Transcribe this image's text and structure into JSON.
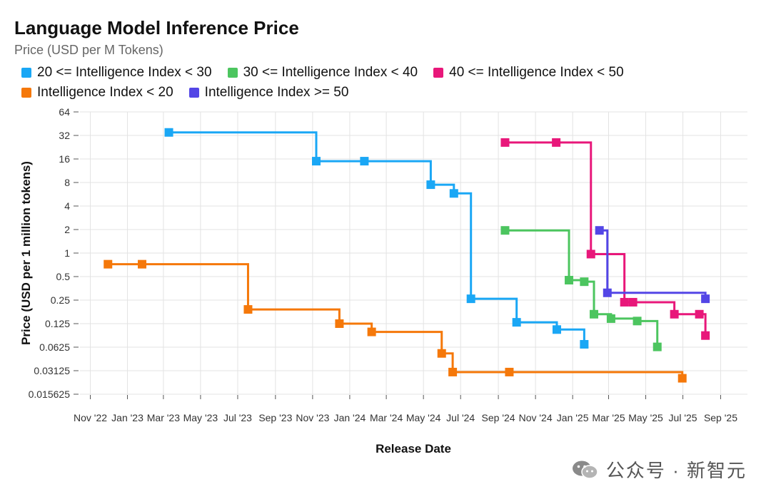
{
  "header": {
    "title": "Language Model Inference Price",
    "subtitle": "Price (USD per M Tokens)"
  },
  "watermark": {
    "text": "公众号 · 新智元",
    "icon": "wechat-icon"
  },
  "chart_data": {
    "type": "line",
    "step": true,
    "title": "Language Model Inference Price",
    "subtitle": "Price (USD per M Tokens)",
    "xlabel": "Release Date",
    "ylabel": "Price (USD per 1 million tokens)",
    "y_scale": "log2",
    "ylim": [
      0.015625,
      64
    ],
    "y_ticks": [
      "64",
      "32",
      "16",
      "8",
      "4",
      "2",
      "1",
      "0.5",
      "0.25",
      "0.125",
      "0.0625",
      "0.03125",
      "0.015625"
    ],
    "xlim": [
      "2022-10-15",
      "2025-10-15"
    ],
    "x_ticks": [
      {
        "date": "2022-11-01",
        "label": "Nov '22"
      },
      {
        "date": "2023-01-01",
        "label": "Jan '23"
      },
      {
        "date": "2023-03-01",
        "label": "Mar '23"
      },
      {
        "date": "2023-05-01",
        "label": "May '23"
      },
      {
        "date": "2023-07-01",
        "label": "Jul '23"
      },
      {
        "date": "2023-09-01",
        "label": "Sep '23"
      },
      {
        "date": "2023-11-01",
        "label": "Nov '23"
      },
      {
        "date": "2024-01-01",
        "label": "Jan '24"
      },
      {
        "date": "2024-03-01",
        "label": "Mar '24"
      },
      {
        "date": "2024-05-01",
        "label": "May '24"
      },
      {
        "date": "2024-07-01",
        "label": "Jul '24"
      },
      {
        "date": "2024-09-01",
        "label": "Sep '24"
      },
      {
        "date": "2024-11-01",
        "label": "Nov '24"
      },
      {
        "date": "2025-01-01",
        "label": "Jan '25"
      },
      {
        "date": "2025-03-01",
        "label": "Mar '25"
      },
      {
        "date": "2025-05-01",
        "label": "May '25"
      },
      {
        "date": "2025-07-01",
        "label": "Jul '25"
      },
      {
        "date": "2025-09-01",
        "label": "Sep '25"
      }
    ],
    "grid": true,
    "legend_position": "top",
    "legend_order": [
      [
        "20 <= Intelligence Index < 30",
        "30 <= Intelligence Index < 40",
        "40 <= Intelligence Index < 50"
      ],
      [
        "Intelligence Index < 20",
        "Intelligence Index >= 50"
      ]
    ],
    "series": [
      {
        "name": "20 <= Intelligence Index < 30",
        "color": "#1aa7f5",
        "points": [
          {
            "x": "2023-03-10",
            "y": 35
          },
          {
            "x": "2023-11-07",
            "y": 15
          },
          {
            "x": "2024-01-25",
            "y": 15
          },
          {
            "x": "2024-05-13",
            "y": 7.5
          },
          {
            "x": "2024-06-20",
            "y": 5.8
          },
          {
            "x": "2024-07-18",
            "y": 0.26
          },
          {
            "x": "2024-10-01",
            "y": 0.13
          },
          {
            "x": "2024-12-06",
            "y": 0.105
          },
          {
            "x": "2025-01-20",
            "y": 0.068
          }
        ]
      },
      {
        "name": "30 <= Intelligence Index < 40",
        "color": "#4cc55f",
        "points": [
          {
            "x": "2024-09-12",
            "y": 1.95
          },
          {
            "x": "2024-12-26",
            "y": 0.45
          },
          {
            "x": "2025-01-20",
            "y": 0.43
          },
          {
            "x": "2025-02-05",
            "y": 0.165
          },
          {
            "x": "2025-03-05",
            "y": 0.145
          },
          {
            "x": "2025-04-17",
            "y": 0.135
          },
          {
            "x": "2025-05-20",
            "y": 0.063
          }
        ]
      },
      {
        "name": "40 <= Intelligence Index < 50",
        "color": "#e8177a",
        "points": [
          {
            "x": "2024-09-12",
            "y": 26
          },
          {
            "x": "2024-12-05",
            "y": 26
          },
          {
            "x": "2025-01-31",
            "y": 0.97
          },
          {
            "x": "2025-03-27",
            "y": 0.235
          },
          {
            "x": "2025-04-10",
            "y": 0.235
          },
          {
            "x": "2025-06-17",
            "y": 0.165
          },
          {
            "x": "2025-07-28",
            "y": 0.165
          },
          {
            "x": "2025-08-07",
            "y": 0.088
          }
        ]
      },
      {
        "name": "Intelligence Index < 20",
        "color": "#f5780a",
        "points": [
          {
            "x": "2022-11-30",
            "y": 0.72
          },
          {
            "x": "2023-01-25",
            "y": 0.72
          },
          {
            "x": "2023-07-18",
            "y": 0.19
          },
          {
            "x": "2023-12-15",
            "y": 0.125
          },
          {
            "x": "2024-02-06",
            "y": 0.098
          },
          {
            "x": "2024-05-31",
            "y": 0.052
          },
          {
            "x": "2024-06-18",
            "y": 0.03
          },
          {
            "x": "2024-09-19",
            "y": 0.03
          },
          {
            "x": "2025-06-30",
            "y": 0.025
          }
        ]
      },
      {
        "name": "Intelligence Index >= 50",
        "color": "#5346e6",
        "points": [
          {
            "x": "2025-02-14",
            "y": 1.95
          },
          {
            "x": "2025-02-27",
            "y": 0.31
          },
          {
            "x": "2025-08-07",
            "y": 0.26
          }
        ]
      }
    ]
  }
}
